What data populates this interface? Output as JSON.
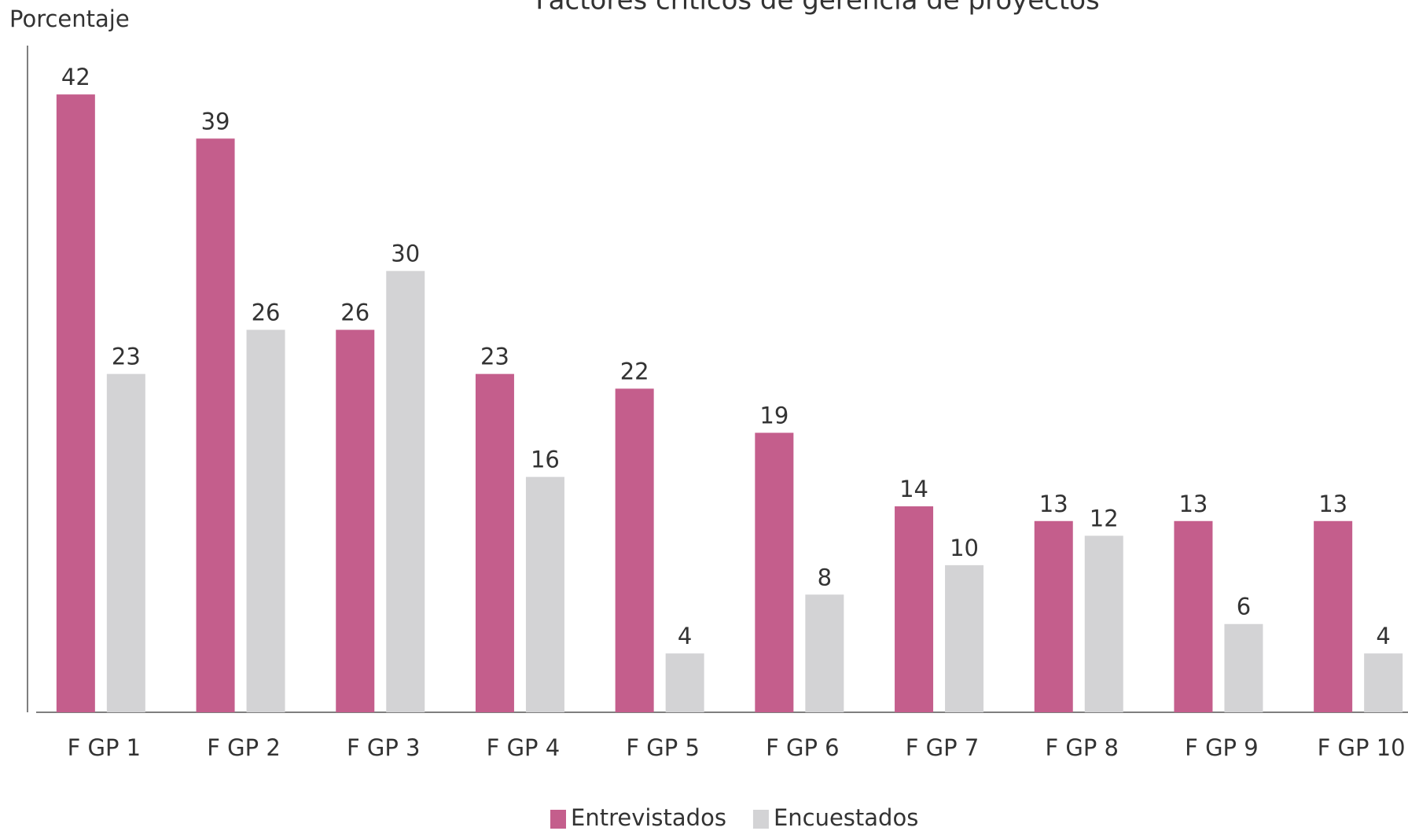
{
  "chart_data": {
    "type": "bar",
    "title": "Factores críticos de gerencia de proyectos",
    "y_label": "Porcentaje",
    "categories": [
      "F GP 1",
      "F GP 2",
      "F GP 3",
      "F GP 4",
      "F GP 5",
      "F GP 6",
      "F GP 7",
      "F GP 8",
      "F GP 9",
      "F GP 10"
    ],
    "series": [
      {
        "name": "Entrevistados",
        "color": "#c45e8c",
        "values": [
          42,
          39,
          26,
          23,
          22,
          19,
          14,
          13,
          13,
          13
        ]
      },
      {
        "name": "Encuestados",
        "color": "#d3d3d5",
        "values": [
          23,
          26,
          30,
          16,
          4,
          8,
          10,
          12,
          6,
          4
        ]
      }
    ],
    "ylim": [
      0,
      45
    ],
    "legend": "bottom"
  }
}
